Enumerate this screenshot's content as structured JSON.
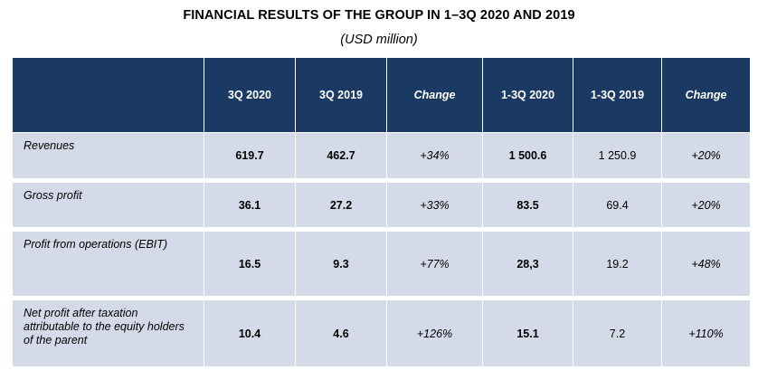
{
  "title": "FINANCIAL RESULTS OF THE GROUP IN 1–3Q 2020 AND 2019",
  "subtitle": "(USD million)",
  "colors": {
    "header_bg": "#1b3a63",
    "row_bg": "#d5dae8"
  },
  "table": {
    "headers": [
      "",
      "3Q 2020",
      "3Q 2019",
      "Change",
      "1-3Q 2020",
      "1-3Q 2019",
      "Change"
    ],
    "rows": [
      {
        "label": "Revenues",
        "cells": [
          "619.7",
          "462.7",
          "+34%",
          "1 500.6",
          "1 250.9",
          "+20%"
        ]
      },
      {
        "label": "Gross profit",
        "cells": [
          "36.1",
          "27.2",
          "+33%",
          "83.5",
          "69.4",
          "+20%"
        ]
      },
      {
        "label": "Profit from operations (EBIT)",
        "cells": [
          "16.5",
          "9.3",
          "+77%",
          "28,3",
          "19.2",
          "+48%"
        ]
      },
      {
        "label": "Net profit after taxation attributable to the equity holders of the parent",
        "cells": [
          "10.4",
          "4.6",
          "+126%",
          "15.1",
          "7.2",
          "+110%"
        ]
      }
    ]
  }
}
